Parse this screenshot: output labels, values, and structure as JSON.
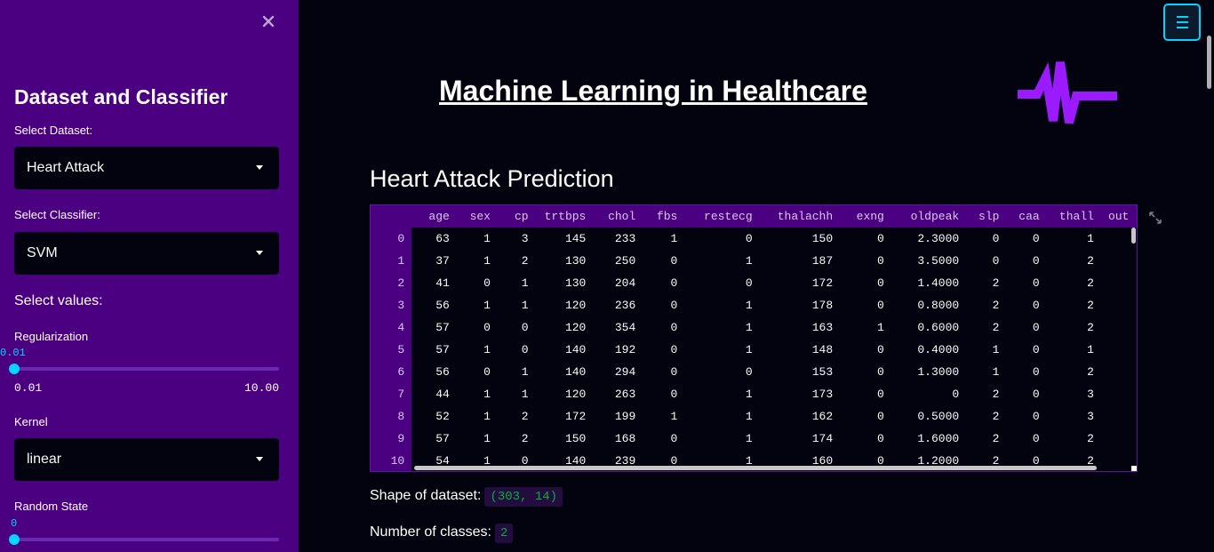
{
  "sidebar": {
    "title": "Dataset and Classifier",
    "dataset_label": "Select Dataset:",
    "dataset_value": "Heart Attack",
    "classifier_label": "Select Classifier:",
    "classifier_value": "SVM",
    "values_label": "Select values:",
    "regularization": {
      "label": "Regularization",
      "current": "0.01",
      "min": "0.01",
      "max": "10.00",
      "level": 0
    },
    "kernel": {
      "label": "Kernel",
      "value": "linear"
    },
    "random_state": {
      "label": "Random State",
      "current": "0",
      "level": 0
    }
  },
  "main": {
    "title": "Machine Learning in Healthcare",
    "section_title": "Heart Attack Prediction",
    "shape_label": "Shape of dataset:",
    "shape_value": "(303, 14)",
    "classes_label": "Number of classes:",
    "classes_value": "2"
  },
  "colors": {
    "sidebar": "#4b0082",
    "accent": "#00d4ff",
    "logo": "#9b1aff",
    "code_text": "#09ab3b"
  },
  "table": {
    "columns": [
      "age",
      "sex",
      "cp",
      "trtbps",
      "chol",
      "fbs",
      "restecg",
      "thalachh",
      "exng",
      "oldpeak",
      "slp",
      "caa",
      "thall",
      "out"
    ],
    "rows": [
      [
        "0",
        "63",
        "1",
        "3",
        "145",
        "233",
        "1",
        "0",
        "150",
        "0",
        "2.3000",
        "0",
        "0",
        "1"
      ],
      [
        "1",
        "37",
        "1",
        "2",
        "130",
        "250",
        "0",
        "1",
        "187",
        "0",
        "3.5000",
        "0",
        "0",
        "2"
      ],
      [
        "2",
        "41",
        "0",
        "1",
        "130",
        "204",
        "0",
        "0",
        "172",
        "0",
        "1.4000",
        "2",
        "0",
        "2"
      ],
      [
        "3",
        "56",
        "1",
        "1",
        "120",
        "236",
        "0",
        "1",
        "178",
        "0",
        "0.8000",
        "2",
        "0",
        "2"
      ],
      [
        "4",
        "57",
        "0",
        "0",
        "120",
        "354",
        "0",
        "1",
        "163",
        "1",
        "0.6000",
        "2",
        "0",
        "2"
      ],
      [
        "5",
        "57",
        "1",
        "0",
        "140",
        "192",
        "0",
        "1",
        "148",
        "0",
        "0.4000",
        "1",
        "0",
        "1"
      ],
      [
        "6",
        "56",
        "0",
        "1",
        "140",
        "294",
        "0",
        "0",
        "153",
        "0",
        "1.3000",
        "1",
        "0",
        "2"
      ],
      [
        "7",
        "44",
        "1",
        "1",
        "120",
        "263",
        "0",
        "1",
        "173",
        "0",
        "0",
        "2",
        "0",
        "3"
      ],
      [
        "8",
        "52",
        "1",
        "2",
        "172",
        "199",
        "1",
        "1",
        "162",
        "0",
        "0.5000",
        "2",
        "0",
        "3"
      ],
      [
        "9",
        "57",
        "1",
        "2",
        "150",
        "168",
        "0",
        "1",
        "174",
        "0",
        "1.6000",
        "2",
        "0",
        "2"
      ],
      [
        "10",
        "54",
        "1",
        "0",
        "140",
        "239",
        "0",
        "1",
        "160",
        "0",
        "1.2000",
        "2",
        "0",
        "2"
      ]
    ]
  }
}
